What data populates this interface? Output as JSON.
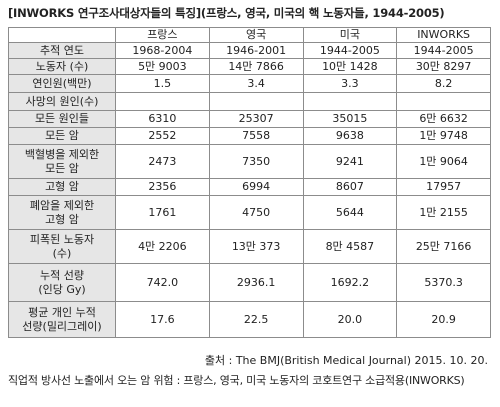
{
  "title": "[INWORKS 연구조사대상자들의 특징](프랑스, 영국, 미국의 핵 노동자들, 1944-2005)",
  "table": {
    "columns": [
      "",
      "프랑스",
      "영국",
      "미국",
      "INWORKS"
    ],
    "rows": [
      {
        "label": "추적 연도",
        "values": [
          "1968-2004",
          "1946-2001",
          "1944-2005",
          "1944-2005"
        ]
      },
      {
        "label": "노동자 (수)",
        "values": [
          "5만 9003",
          "14만 7866",
          "10만 1428",
          "30만 8297"
        ]
      },
      {
        "label": "연인원(백만)",
        "values": [
          "1.5",
          "3.4",
          "3.3",
          "8.2"
        ]
      },
      {
        "label": "모든 원인들",
        "values": [
          "6310",
          "25307",
          "35015",
          "6만 6632"
        ]
      },
      {
        "label": "모든 암",
        "values": [
          "2552",
          "7558",
          "9638",
          "1만 9748"
        ]
      },
      {
        "label": "백혈병을 제외한\n모든 암",
        "values": [
          "2473",
          "7350",
          "9241",
          "1만 9064"
        ]
      },
      {
        "label": "고형 암",
        "values": [
          "2356",
          "6994",
          "8607",
          "17957"
        ]
      },
      {
        "label": "폐암을 제외한\n고형 암",
        "values": [
          "1761",
          "4750",
          "5644",
          "1만 2155"
        ]
      },
      {
        "label": "피폭된 노동자\n(수)",
        "values": [
          "4만 2206",
          "13만 373",
          "8만 4587",
          "25만 7166"
        ]
      },
      {
        "label": "누적 선량\n(인당 Gy)",
        "values": [
          "742.0",
          "2936.1",
          "1692.2",
          "5370.3"
        ]
      },
      {
        "label": "평균 개인 누적\n선량(밀리그레이)",
        "values": [
          "17.6",
          "22.5",
          "20.0",
          "20.9"
        ]
      }
    ],
    "section_label": "사망의 원인(수)"
  },
  "source": "출처 : The BMJ(British Medical Journal) 2015. 10. 20.",
  "caption": "직업적 방사선 노출에서 오는 암 위험 : 프랑스, 영국, 미국 노동자의 코호트연구 소급적용(INWORKS)"
}
